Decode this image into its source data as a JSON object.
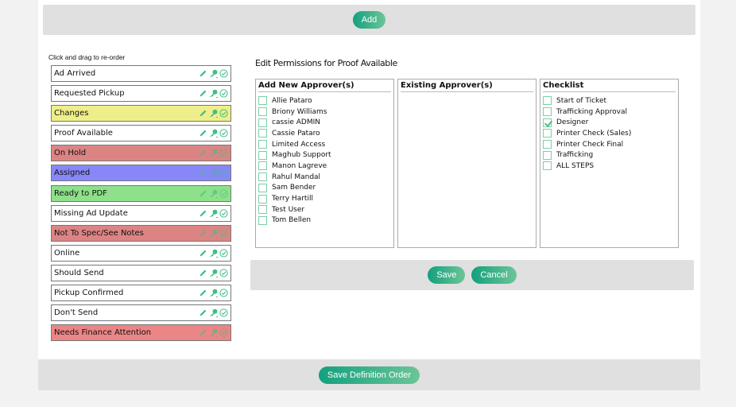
{
  "top_bar": {
    "add_label": "Add"
  },
  "status_list": {
    "hint": "Click and drag to re-order",
    "items": [
      {
        "label": "Ad Arrived",
        "color": "#ffffff"
      },
      {
        "label": "Requested Pickup",
        "color": "#ffffff"
      },
      {
        "label": "Changes",
        "color": "#eeef8a"
      },
      {
        "label": "Proof Available",
        "color": "#ffffff"
      },
      {
        "label": "On Hold",
        "color": "#dc8484"
      },
      {
        "label": "Assigned",
        "color": "#8787f7"
      },
      {
        "label": "Ready to PDF",
        "color": "#8ee08a"
      },
      {
        "label": "Missing Ad Update",
        "color": "#ffffff"
      },
      {
        "label": "Not To Spec/See Notes",
        "color": "#dc8484"
      },
      {
        "label": "Online",
        "color": "#ffffff"
      },
      {
        "label": "Should Send",
        "color": "#ffffff"
      },
      {
        "label": "Pickup Confirmed",
        "color": "#ffffff"
      },
      {
        "label": "Don't Send",
        "color": "#ffffff"
      },
      {
        "label": "Needs Finance Attention",
        "color": "#ec8585"
      }
    ],
    "row_icons": [
      "pencil-icon",
      "key-icon",
      "check-circle-icon"
    ],
    "icon_color": "#3fbf86"
  },
  "permissions": {
    "title": "Edit Permissions for Proof Available",
    "add_new_approvers": {
      "header": "Add New Approver(s)",
      "options": [
        {
          "label": "Allie Pataro",
          "checked": false
        },
        {
          "label": "Briony Williams",
          "checked": false
        },
        {
          "label": "cassie ADMIN",
          "checked": false
        },
        {
          "label": "Cassie Pataro",
          "checked": false
        },
        {
          "label": "Limited Access",
          "checked": false
        },
        {
          "label": "Maghub Support",
          "checked": false
        },
        {
          "label": "Manon Lagreve",
          "checked": false
        },
        {
          "label": "Rahul Mandal",
          "checked": false
        },
        {
          "label": "Sam Bender",
          "checked": false
        },
        {
          "label": "Terry Hartill",
          "checked": false
        },
        {
          "label": "Test User",
          "checked": false
        },
        {
          "label": "Tom Bellen",
          "checked": false
        }
      ]
    },
    "existing_approvers": {
      "header": "Existing Approver(s)",
      "options": []
    },
    "checklist": {
      "header": "Checklist",
      "options": [
        {
          "label": "Start of Ticket",
          "checked": false
        },
        {
          "label": "Trafficking Approval",
          "checked": false
        },
        {
          "label": "Designer",
          "checked": true
        },
        {
          "label": "Printer Check (Sales)",
          "checked": false
        },
        {
          "label": "Printer Check Final",
          "checked": false
        },
        {
          "label": "Trafficking",
          "checked": false
        },
        {
          "label": "ALL STEPS",
          "checked": false
        }
      ]
    },
    "save_label": "Save",
    "cancel_label": "Cancel"
  },
  "footer": {
    "save_order_label": "Save Definition Order"
  }
}
